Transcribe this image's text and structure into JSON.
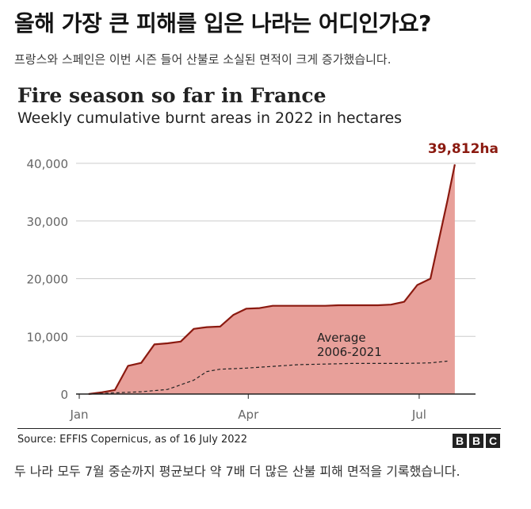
{
  "headline": "올해 가장 큰 피해를 입은 나라는 어디인가요?",
  "subheadline": "프랑스와 스페인은 이번 시즌 들어 산불로 소실된 면적이 크게 증가했습니다.",
  "source": "Source: EFFIS Copernicus, as of 16 July 2022",
  "logo_letters": [
    "B",
    "B",
    "C"
  ],
  "caption": "두 나라 모두 7월 중순까지 평균보다 약 7배 더 많은 산불 피해 면적을 기록했습니다.",
  "colors": {
    "line_2022": "#8b1a10",
    "area_2022": "#e8a09a",
    "average_line": "#222222",
    "grid": "#cccccc",
    "highlight_label": "#8b1a10"
  },
  "chart_data": {
    "type": "area",
    "title": "Fire season so far in France",
    "subtitle": "Weekly cumulative burnt areas in 2022 in hectares",
    "xlabel": "",
    "ylabel": "",
    "x_ticks": [
      "Jan",
      "Apr",
      "Jul"
    ],
    "x_tick_dates": [
      "2022-01-01",
      "2022-04-01",
      "2022-07-01"
    ],
    "x_range": [
      "2022-01-01",
      "2022-07-31"
    ],
    "y_ticks": [
      "0",
      "10,000",
      "20,000",
      "30,000",
      "40,000"
    ],
    "ylim": [
      0,
      40000
    ],
    "grid": true,
    "end_label": "39,812ha",
    "series": [
      {
        "kind": "area-line",
        "dates": [
          "2022-01-06",
          "2022-01-13",
          "2022-01-20",
          "2022-01-27",
          "2022-02-03",
          "2022-02-10",
          "2022-02-17",
          "2022-02-24",
          "2022-03-03",
          "2022-03-10",
          "2022-03-17",
          "2022-03-24",
          "2022-03-31",
          "2022-04-07",
          "2022-04-14",
          "2022-04-21",
          "2022-04-28",
          "2022-05-05",
          "2022-05-12",
          "2022-05-19",
          "2022-05-26",
          "2022-06-02",
          "2022-06-09",
          "2022-06-16",
          "2022-06-23",
          "2022-06-30",
          "2022-07-07",
          "2022-07-16"
        ],
        "values": [
          0,
          300,
          700,
          4900,
          5400,
          8600,
          8800,
          9100,
          11300,
          11600,
          11700,
          13700,
          14800,
          14900,
          15300,
          15300,
          15300,
          15300,
          15300,
          15400,
          15400,
          15400,
          15400,
          15500,
          16000,
          18900,
          20000,
          33500
        ]
      },
      {
        "name": "Average\n2006-2021",
        "kind": "dashed-line",
        "dates": [
          "2022-01-06",
          "2022-01-20",
          "2022-02-03",
          "2022-02-17",
          "2022-03-03",
          "2022-03-10",
          "2022-03-17",
          "2022-03-31",
          "2022-04-14",
          "2022-04-28",
          "2022-05-12",
          "2022-05-26",
          "2022-06-09",
          "2022-06-23",
          "2022-07-07",
          "2022-07-16"
        ],
        "values": [
          0,
          200,
          400,
          800,
          2400,
          3900,
          4300,
          4500,
          4800,
          5100,
          5200,
          5300,
          5300,
          5300,
          5400,
          5700
        ]
      }
    ],
    "final_value_2022": 39812,
    "final_date_2022": "2022-07-20"
  }
}
